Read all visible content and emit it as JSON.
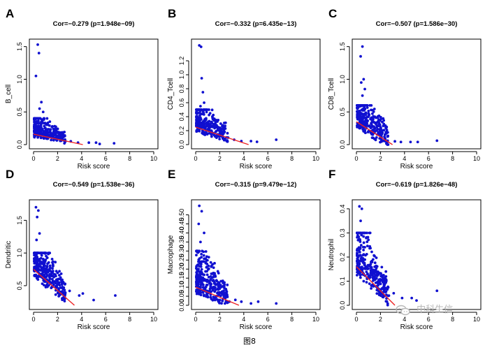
{
  "caption": "图8",
  "watermark": {
    "text": "中科生信",
    "icon": "wechat-icon"
  },
  "colors": {
    "points": "#1010d0",
    "fit_line": "#ee2222",
    "axis": "#000000"
  },
  "chart_data": [
    {
      "type": "scatter",
      "panel": "A",
      "title": "Cor=−0.279 (p=1.948e−09)",
      "xlabel": "Risk score",
      "ylabel": "B_cell",
      "xlim": [
        0,
        10
      ],
      "ylim": [
        0,
        1.55
      ],
      "xticks": [
        0,
        2,
        4,
        6,
        8,
        10
      ],
      "yticks": [
        0,
        0.5,
        1.0,
        1.5
      ],
      "yticklabels": [
        "0.0",
        "0.5",
        "1.0",
        "1.5"
      ],
      "fit": {
        "x": [
          0,
          4.1
        ],
        "y": [
          0.16,
          0.0
        ]
      },
      "highlights": [
        [
          0.35,
          1.53
        ],
        [
          0.45,
          1.4
        ],
        [
          0.2,
          1.05
        ],
        [
          0.65,
          0.65
        ],
        [
          0.5,
          0.55
        ],
        [
          0.8,
          0.5
        ]
      ],
      "outliers": [
        [
          2.6,
          0.07
        ],
        [
          3.1,
          0.05
        ],
        [
          3.7,
          0.03
        ],
        [
          4.6,
          0.03
        ],
        [
          5.2,
          0.03
        ],
        [
          5.5,
          0.01
        ],
        [
          6.7,
          0.02
        ]
      ],
      "cloud": {
        "n": 330,
        "seed": 11,
        "ymax": 0.4,
        "spread": 0.08
      }
    },
    {
      "type": "scatter",
      "panel": "B",
      "title": "Cor=−0.332 (p=6.435e−13)",
      "xlabel": "Risk score",
      "ylabel": "CD4_Tcell",
      "xlim": [
        0,
        10
      ],
      "ylim": [
        0,
        1.45
      ],
      "xticks": [
        0,
        2,
        4,
        6,
        8,
        10
      ],
      "yticks": [
        0,
        0.2,
        0.4,
        0.6,
        0.8,
        1.0,
        1.2
      ],
      "yticklabels": [
        "0.0",
        "0.2",
        "0.4",
        "0.6",
        "0.8",
        "1.0",
        "1.2"
      ],
      "fit": {
        "x": [
          0,
          4.4
        ],
        "y": [
          0.25,
          0.0
        ]
      },
      "highlights": [
        [
          0.3,
          1.42
        ],
        [
          0.45,
          1.4
        ],
        [
          0.5,
          0.95
        ],
        [
          0.6,
          0.75
        ],
        [
          0.7,
          0.6
        ],
        [
          0.4,
          0.55
        ]
      ],
      "outliers": [
        [
          2.7,
          0.1
        ],
        [
          3.2,
          0.07
        ],
        [
          3.8,
          0.05
        ],
        [
          4.6,
          0.05
        ],
        [
          5.1,
          0.04
        ],
        [
          6.7,
          0.07
        ]
      ],
      "cloud": {
        "n": 330,
        "seed": 23,
        "ymax": 0.5,
        "spread": 0.13
      }
    },
    {
      "type": "scatter",
      "panel": "C",
      "title": "Cor=−0.507 (p=1.586e−30)",
      "xlabel": "Risk score",
      "ylabel": "CD8_Tcell",
      "xlim": [
        0,
        10
      ],
      "ylim": [
        0,
        1.55
      ],
      "xticks": [
        0,
        2,
        4,
        6,
        8,
        10
      ],
      "yticks": [
        0,
        0.5,
        1.0,
        1.5
      ],
      "yticklabels": [
        "0.0",
        "0.5",
        "1.0",
        "1.5"
      ],
      "fit": {
        "x": [
          0,
          3.0
        ],
        "y": [
          0.35,
          0.0
        ]
      },
      "highlights": [
        [
          0.5,
          1.5
        ],
        [
          0.35,
          1.35
        ],
        [
          0.6,
          1.0
        ],
        [
          0.4,
          0.95
        ],
        [
          0.7,
          0.85
        ],
        [
          0.5,
          0.75
        ]
      ],
      "outliers": [
        [
          2.6,
          0.06
        ],
        [
          3.2,
          0.05
        ],
        [
          3.7,
          0.04
        ],
        [
          4.5,
          0.04
        ],
        [
          5.1,
          0.04
        ],
        [
          6.7,
          0.06
        ]
      ],
      "cloud": {
        "n": 330,
        "seed": 37,
        "ymax": 0.6,
        "spread": 0.18
      }
    },
    {
      "type": "scatter",
      "panel": "D",
      "title": "Cor=−0.549 (p=1.538e−36)",
      "xlabel": "Risk score",
      "ylabel": "Dendritic",
      "xlim": [
        0,
        10
      ],
      "ylim": [
        0.2,
        1.75
      ],
      "xticks": [
        0,
        2,
        4,
        6,
        8,
        10
      ],
      "yticks": [
        0.5,
        1.0,
        1.5
      ],
      "yticklabels": [
        "0.5",
        "1.0",
        "1.5"
      ],
      "fit": {
        "x": [
          0,
          3.4
        ],
        "y": [
          0.75,
          0.2
        ]
      },
      "highlights": [
        [
          0.2,
          1.7
        ],
        [
          0.4,
          1.65
        ],
        [
          0.3,
          1.55
        ],
        [
          0.5,
          1.3
        ],
        [
          0.25,
          1.2
        ]
      ],
      "outliers": [
        [
          2.6,
          0.3
        ],
        [
          3.0,
          0.42
        ],
        [
          3.8,
          0.35
        ],
        [
          4.1,
          0.38
        ],
        [
          5.0,
          0.28
        ],
        [
          6.8,
          0.35
        ]
      ],
      "cloud": {
        "n": 340,
        "seed": 41,
        "ymax": 1.0,
        "spread": 0.2,
        "ymin": 0.25
      }
    },
    {
      "type": "scatter",
      "panel": "E",
      "title": "Cor=−0.315 (p=9.479e−12)",
      "xlabel": "Risk score",
      "ylabel": "Macrophage",
      "xlim": [
        0,
        10
      ],
      "ylim": [
        0,
        0.56
      ],
      "xticks": [
        0,
        2,
        4,
        6,
        8,
        10
      ],
      "yticks": [
        0,
        0.05,
        0.1,
        0.15,
        0.2,
        0.25,
        0.3,
        0.35,
        0.4,
        0.45,
        0.5
      ],
      "yticklabels": [
        "0.00",
        "0.05",
        "0.10",
        "0.15",
        "0.20",
        "0.25",
        "0.30",
        "0.35",
        "0.40",
        "0.45",
        "0.50"
      ],
      "fit": {
        "x": [
          0,
          3.6
        ],
        "y": [
          0.1,
          0.0
        ]
      },
      "highlights": [
        [
          0.3,
          0.55
        ],
        [
          0.5,
          0.52
        ],
        [
          0.25,
          0.45
        ],
        [
          0.7,
          0.4
        ],
        [
          0.4,
          0.35
        ]
      ],
      "outliers": [
        [
          2.8,
          0.02
        ],
        [
          3.3,
          0.03
        ],
        [
          3.8,
          0.02
        ],
        [
          4.6,
          0.01
        ],
        [
          5.2,
          0.02
        ],
        [
          6.7,
          0.01
        ]
      ],
      "cloud": {
        "n": 330,
        "seed": 53,
        "ymax": 0.3,
        "spread": 0.07
      }
    },
    {
      "type": "scatter",
      "panel": "F",
      "title": "Cor=−0.619 (p=1.826e−48)",
      "xlabel": "Risk score",
      "ylabel": "Neutrophil",
      "xlim": [
        0,
        10
      ],
      "ylim": [
        0,
        0.42
      ],
      "xticks": [
        0,
        2,
        4,
        6,
        8,
        10
      ],
      "yticks": [
        0,
        0.1,
        0.2,
        0.3,
        0.4
      ],
      "yticklabels": [
        "0.0",
        "0.1",
        "0.2",
        "0.3",
        "0.4"
      ],
      "fit": {
        "x": [
          0,
          3.2
        ],
        "y": [
          0.16,
          0.0
        ]
      },
      "highlights": [
        [
          0.25,
          0.41
        ],
        [
          0.45,
          0.4
        ],
        [
          0.35,
          0.35
        ],
        [
          0.6,
          0.3
        ],
        [
          0.3,
          0.27
        ]
      ],
      "outliers": [
        [
          2.7,
          0.04
        ],
        [
          3.1,
          0.05
        ],
        [
          3.8,
          0.03
        ],
        [
          4.6,
          0.03
        ],
        [
          5.0,
          0.02
        ],
        [
          6.7,
          0.06
        ]
      ],
      "cloud": {
        "n": 330,
        "seed": 67,
        "ymax": 0.3,
        "spread": 0.06
      }
    }
  ]
}
